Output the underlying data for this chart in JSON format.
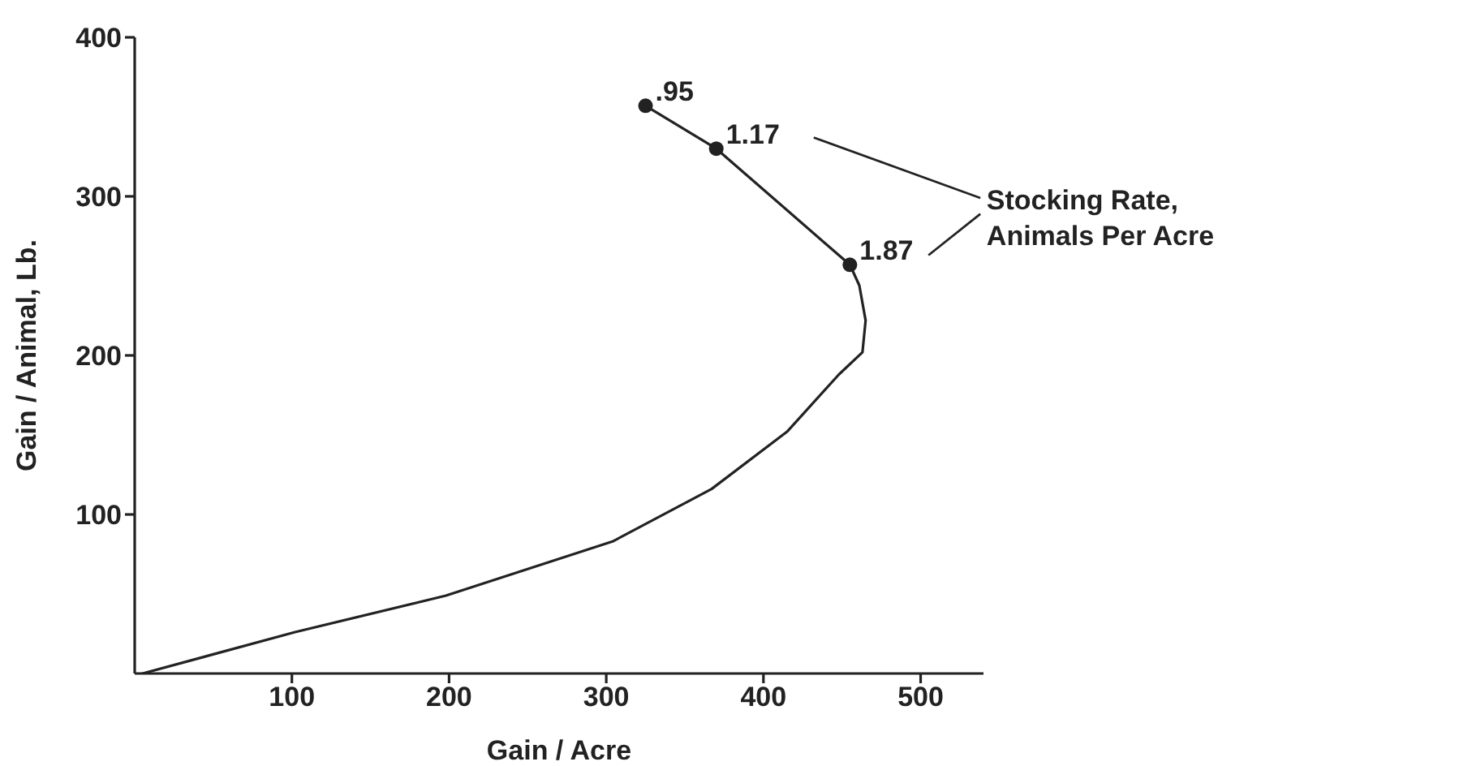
{
  "chart_data": {
    "type": "line",
    "xlabel": "Gain / Acre",
    "ylabel": "Gain / Animal, Lb.",
    "xlim": [
      0,
      540
    ],
    "xticks": [
      100,
      200,
      300,
      400,
      500
    ],
    "ylim": [
      0,
      400
    ],
    "yticks": [
      100,
      200,
      300,
      400
    ],
    "series": [
      {
        "color": "#222222",
        "marker": "none",
        "line_style": "solid",
        "x": [
          5,
          102,
          198,
          304,
          367,
          415,
          448,
          463,
          465,
          461,
          455,
          370,
          325
        ],
        "values": [
          0,
          26,
          49,
          83,
          116,
          152,
          188,
          202,
          222,
          244,
          257,
          330,
          357
        ]
      },
      {
        "type": "scatter",
        "color": "#222222",
        "marker": "circle",
        "x": [
          325,
          370,
          455
        ],
        "values": [
          357,
          330,
          257
        ]
      }
    ],
    "annotations": [
      {
        "text": ".95",
        "x": 325,
        "y": 357
      },
      {
        "text": "1.17",
        "x": 370,
        "y": 330
      },
      {
        "text": "1.87",
        "x": 455,
        "y": 257
      },
      "Stocking Rate, Animals Per Acre"
    ]
  }
}
